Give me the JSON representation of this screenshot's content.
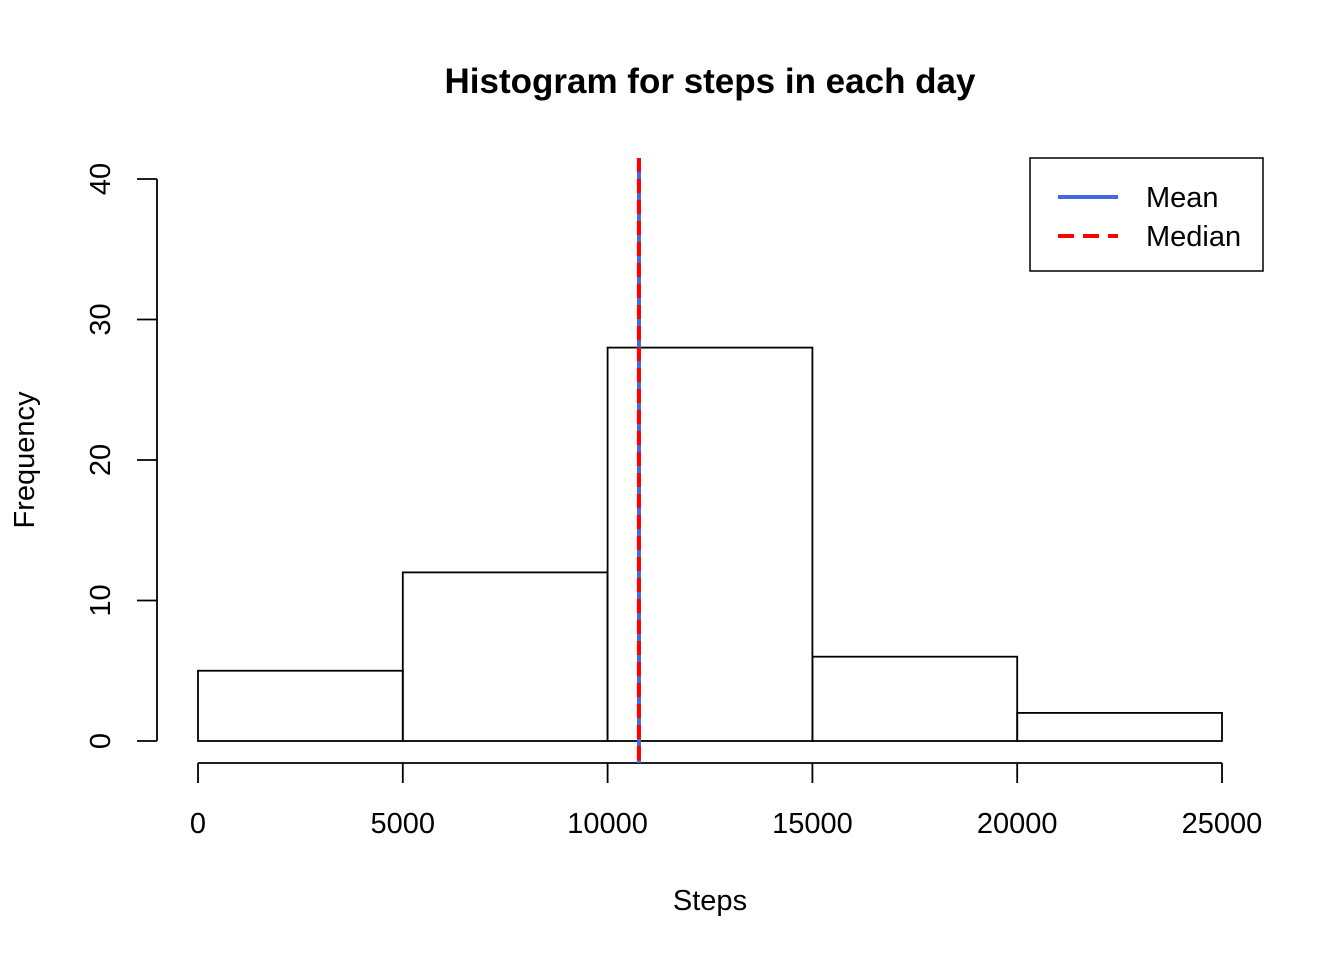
{
  "chart_data": {
    "type": "bar",
    "title": "Histogram for steps in each day",
    "xlabel": "Steps",
    "ylabel": "Frequency",
    "bins": [
      {
        "start": 0,
        "end": 5000,
        "count": 5
      },
      {
        "start": 5000,
        "end": 10000,
        "count": 12
      },
      {
        "start": 10000,
        "end": 15000,
        "count": 28
      },
      {
        "start": 15000,
        "end": 20000,
        "count": 6
      },
      {
        "start": 20000,
        "end": 25000,
        "count": 2
      }
    ],
    "xlim": [
      0,
      25000
    ],
    "ylim": [
      0,
      40
    ],
    "x_ticks": [
      "0",
      "5000",
      "10000",
      "15000",
      "20000",
      "25000"
    ],
    "y_ticks": [
      "0",
      "10",
      "20",
      "30",
      "40"
    ],
    "reference_lines": [
      {
        "name": "Mean",
        "x": 10766,
        "color": "#4169e1",
        "style": "solid"
      },
      {
        "name": "Median",
        "x": 10765,
        "color": "#ff0000",
        "style": "dashed"
      }
    ],
    "legend": {
      "placement": "top-right",
      "entries": [
        {
          "label": "Mean",
          "color": "#4169e1",
          "style": "solid"
        },
        {
          "label": "Median",
          "color": "#ff0000",
          "style": "dashed"
        }
      ]
    },
    "grid": false
  }
}
